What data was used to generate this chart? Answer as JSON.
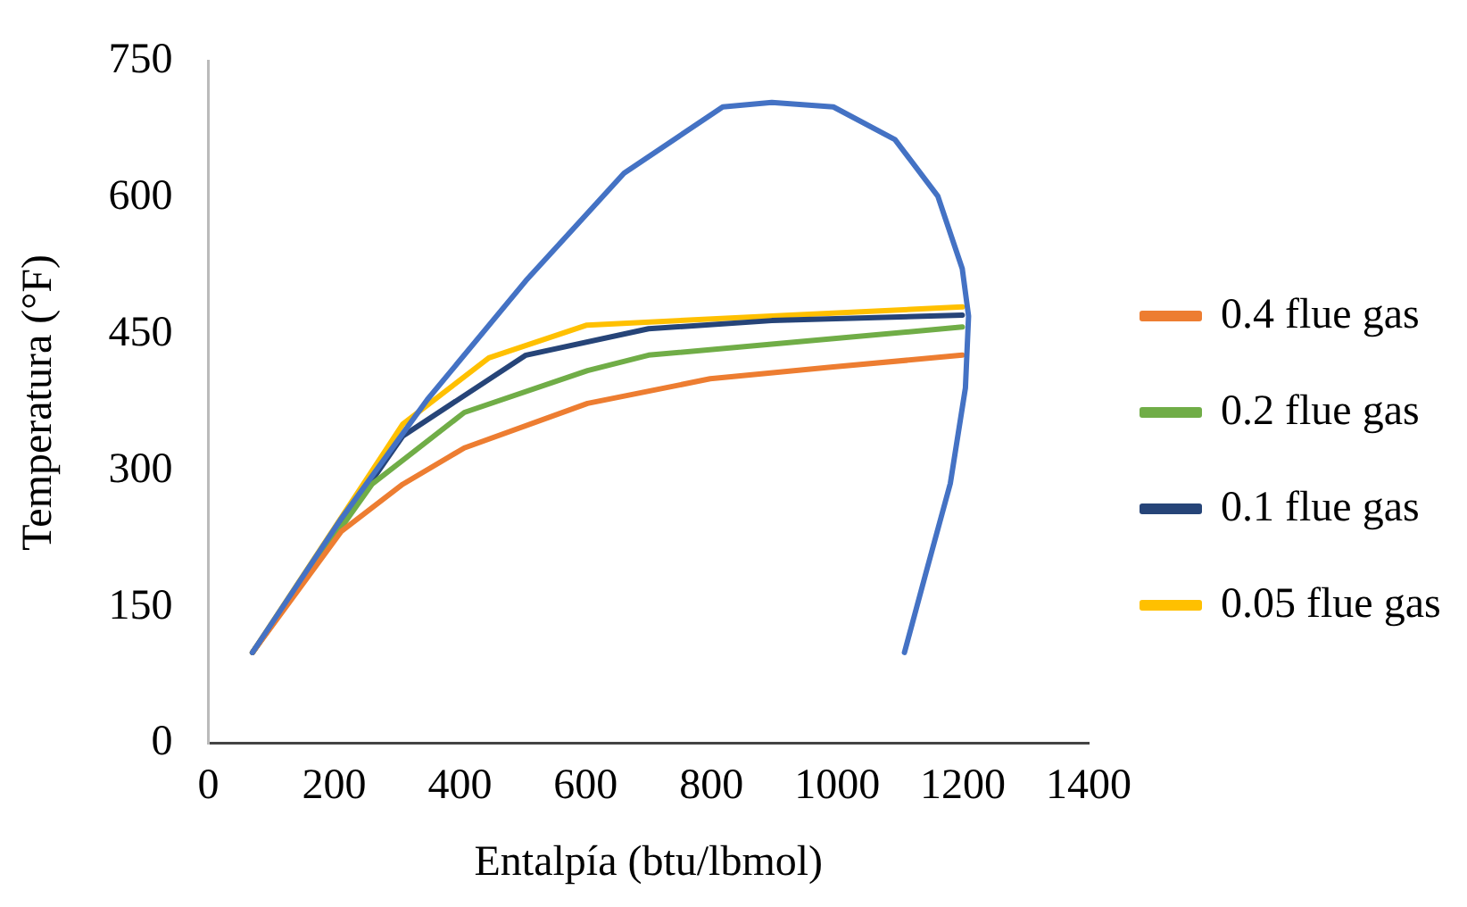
{
  "chart_data": {
    "type": "line",
    "xlabel": "Entalpía (btu/lbmol)",
    "ylabel": "Temperatura (°F)",
    "xlim": [
      0,
      1400
    ],
    "xticks": [
      0,
      200,
      400,
      600,
      800,
      1000,
      1200,
      1400
    ],
    "ylim": [
      0,
      750
    ],
    "yticks": [
      0,
      150,
      300,
      450,
      600,
      750
    ],
    "grid": false,
    "legend": "right",
    "marker": "none",
    "line_style": "solid",
    "series": [
      {
        "color": "#4472c4",
        "x": [
          70,
          211,
          348,
          505,
          661,
          818,
          896,
          994,
          1092,
          1160,
          1199,
          1209,
          1204,
          1180,
          1141,
          1107
        ],
        "values": [
          100,
          247,
          378,
          509,
          627,
          700,
          705,
          700,
          664,
          602,
          522,
          470,
          391,
          286,
          187,
          100
        ]
      },
      {
        "name": "0.4 flue gas",
        "color": "#ed7d31",
        "x": [
          70,
          211,
          309,
          407,
          603,
          798,
          994,
          1199
        ],
        "values": [
          100,
          233,
          285,
          325,
          374,
          401,
          414,
          427
        ]
      },
      {
        "name": "0.2 flue gas",
        "color": "#70ad47",
        "x": [
          70,
          260,
          407,
          603,
          700,
          896,
          1199
        ],
        "values": [
          100,
          285,
          364,
          410,
          427,
          439,
          458
        ]
      },
      {
        "name": "0.1 flue gas",
        "color": "#264478",
        "x": [
          70,
          309,
          505,
          700,
          896,
          1199
        ],
        "values": [
          100,
          338,
          427,
          456,
          465,
          471
        ]
      },
      {
        "name": "0.05 flue gas",
        "color": "#ffc000",
        "x": [
          70,
          309,
          446,
          602,
          896,
          1199
        ],
        "values": [
          100,
          351,
          424,
          460,
          470,
          480
        ]
      }
    ]
  }
}
